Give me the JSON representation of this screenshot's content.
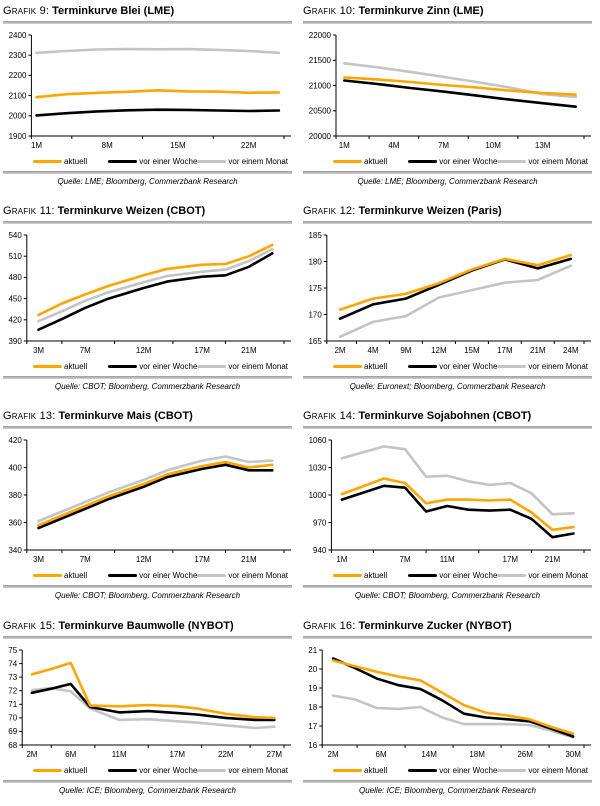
{
  "legend": {
    "items": [
      {
        "name": "aktuell",
        "label": "aktuell",
        "color": "#FFA500"
      },
      {
        "name": "woche",
        "label": "vor einer Woche",
        "color": "#000000"
      },
      {
        "name": "monat",
        "label": "vor einem Monat",
        "color": "#C4C4C4"
      }
    ]
  },
  "chart_data": [
    {
      "type": "line",
      "label": "Grafik 9:",
      "title": "Terminkurve Blei (LME)",
      "source": "Quelle: LME; Bloomberg, Commerzbank Research",
      "xlim": [
        0.5,
        25.5
      ],
      "ylim": [
        1900,
        2400
      ],
      "yticks": [
        1900,
        2000,
        2100,
        2200,
        2300,
        2400
      ],
      "xticks": [
        {
          "v": 1,
          "label": "1M"
        },
        {
          "v": 8,
          "label": "8M"
        },
        {
          "v": 15,
          "label": "15M"
        },
        {
          "v": 22,
          "label": "22M"
        }
      ],
      "x": [
        1,
        4,
        7,
        10,
        13,
        16,
        19,
        22,
        25
      ],
      "series": [
        {
          "name": "aktuell",
          "values": [
            2092,
            2107,
            2114,
            2119,
            2126,
            2121,
            2120,
            2114,
            2116
          ]
        },
        {
          "name": "woche",
          "values": [
            2002,
            2013,
            2022,
            2027,
            2030,
            2029,
            2026,
            2024,
            2026
          ]
        },
        {
          "name": "monat",
          "values": [
            2312,
            2321,
            2328,
            2330,
            2329,
            2330,
            2326,
            2321,
            2312
          ]
        }
      ]
    },
    {
      "type": "line",
      "label": "Grafik 10:",
      "title": "Terminkurve Zinn (LME)",
      "source": "Quelle: LME; Bloomberg, Commerzbank Research",
      "xlim": [
        0.5,
        15.5
      ],
      "ylim": [
        20000,
        22000
      ],
      "yticks": [
        20000,
        20500,
        21000,
        21500,
        22000
      ],
      "xticks": [
        {
          "v": 1,
          "label": "1M"
        },
        {
          "v": 4,
          "label": "4M"
        },
        {
          "v": 7,
          "label": "7M"
        },
        {
          "v": 10,
          "label": "10M"
        },
        {
          "v": 13,
          "label": "13M"
        }
      ],
      "x": [
        1,
        3,
        5,
        7,
        9,
        11,
        13,
        15
      ],
      "series": [
        {
          "name": "aktuell",
          "values": [
            21160,
            21120,
            21070,
            21010,
            20960,
            20900,
            20850,
            20820
          ]
        },
        {
          "name": "woche",
          "values": [
            21100,
            21030,
            20950,
            20880,
            20800,
            20720,
            20650,
            20580
          ]
        },
        {
          "name": "monat",
          "values": [
            21440,
            21360,
            21270,
            21170,
            21070,
            20960,
            20830,
            20770
          ]
        }
      ]
    },
    {
      "type": "line",
      "label": "Grafik 11:",
      "title": "Terminkurve Weizen (CBOT)",
      "source": "Quelle: CBOT; Bloomberg, Commerzbank Research",
      "xlim": [
        2,
        24
      ],
      "ylim": [
        390,
        540
      ],
      "yticks": [
        390,
        420,
        450,
        480,
        510,
        540
      ],
      "xticks": [
        {
          "v": 3,
          "label": "3M"
        },
        {
          "v": 7,
          "label": "7M"
        },
        {
          "v": 12,
          "label": "12M"
        },
        {
          "v": 17,
          "label": "17M"
        },
        {
          "v": 21,
          "label": "21M"
        }
      ],
      "x": [
        3,
        5,
        7,
        9,
        12,
        14,
        17,
        19,
        21,
        23
      ],
      "series": [
        {
          "name": "aktuell",
          "values": [
            427,
            443,
            456,
            468,
            483,
            492,
            498,
            499,
            510,
            526
          ]
        },
        {
          "name": "woche",
          "values": [
            406,
            421,
            437,
            450,
            465,
            474,
            481,
            483,
            495,
            514
          ]
        },
        {
          "name": "monat",
          "values": [
            418,
            432,
            447,
            459,
            473,
            482,
            488,
            491,
            503,
            520
          ]
        }
      ]
    },
    {
      "type": "line",
      "label": "Grafik 12:",
      "title": "Terminkurve Weizen (Paris)",
      "source": "Quelle: Euronext; Bloomberg, Commerzbank Research",
      "xlim": [
        -0.4,
        7.4
      ],
      "ylim": [
        165,
        185
      ],
      "yticks": [
        165,
        170,
        175,
        180,
        185
      ],
      "xticks": [
        {
          "v": 0,
          "label": "2M"
        },
        {
          "v": 1,
          "label": "4M"
        },
        {
          "v": 2,
          "label": "9M"
        },
        {
          "v": 3,
          "label": "12M"
        },
        {
          "v": 4,
          "label": "15M"
        },
        {
          "v": 5,
          "label": "17M"
        },
        {
          "v": 6,
          "label": "21M"
        },
        {
          "v": 7,
          "label": "24M"
        }
      ],
      "x": [
        0,
        1,
        2,
        3,
        4,
        5,
        6,
        7
      ],
      "series": [
        {
          "name": "aktuell",
          "values": [
            170.9,
            173.0,
            173.9,
            175.9,
            178.5,
            180.5,
            179.3,
            181.2
          ]
        },
        {
          "name": "woche",
          "values": [
            169.2,
            171.9,
            173.0,
            175.6,
            178.3,
            180.4,
            178.7,
            180.5
          ]
        },
        {
          "name": "monat",
          "values": [
            165.8,
            168.6,
            169.7,
            173.2,
            174.6,
            176.0,
            176.5,
            179.2
          ]
        }
      ]
    },
    {
      "type": "line",
      "label": "Grafik 13:",
      "title": "Terminkurve Mais (CBOT)",
      "source": "Quelle: CBOT; Bloomberg, Commerzbank Research",
      "xlim": [
        2,
        24
      ],
      "ylim": [
        340,
        420
      ],
      "yticks": [
        340,
        360,
        380,
        400,
        420
      ],
      "xticks": [
        {
          "v": 3,
          "label": "3M"
        },
        {
          "v": 7,
          "label": "7M"
        },
        {
          "v": 12,
          "label": "12M"
        },
        {
          "v": 17,
          "label": "17M"
        },
        {
          "v": 21,
          "label": "21M"
        }
      ],
      "x": [
        3,
        5,
        7,
        9,
        12,
        14,
        17,
        19,
        21,
        23
      ],
      "series": [
        {
          "name": "aktuell",
          "values": [
            358,
            365,
            372,
            379,
            388,
            395,
            401,
            404,
            400,
            402
          ]
        },
        {
          "name": "woche",
          "values": [
            356,
            363,
            370,
            377,
            386,
            393,
            399,
            402,
            398,
            398
          ]
        },
        {
          "name": "monat",
          "values": [
            361,
            368,
            375,
            382,
            391,
            398,
            405,
            408,
            404,
            405
          ]
        }
      ]
    },
    {
      "type": "line",
      "label": "Grafik 14:",
      "title": "Terminkurve Sojabohnen (CBOT)",
      "source": "Quelle: CBOT; Bloomberg, Commerzbank Research",
      "xlim": [
        0,
        24
      ],
      "ylim": [
        940,
        1060
      ],
      "yticks": [
        940,
        970,
        1000,
        1030,
        1060
      ],
      "xticks": [
        {
          "v": 1,
          "label": "1M"
        },
        {
          "v": 7,
          "label": "7M"
        },
        {
          "v": 11,
          "label": "11M"
        },
        {
          "v": 17,
          "label": "17M"
        },
        {
          "v": 21,
          "label": "21M"
        }
      ],
      "x": [
        1,
        5,
        7,
        9,
        11,
        13,
        15,
        17,
        19,
        21,
        23
      ],
      "series": [
        {
          "name": "aktuell",
          "values": [
            1001,
            1018,
            1013,
            991,
            995,
            995,
            994,
            995,
            981,
            962,
            965
          ]
        },
        {
          "name": "woche",
          "values": [
            995,
            1010,
            1008,
            982,
            988,
            984,
            983,
            984,
            974,
            954,
            958
          ]
        },
        {
          "name": "monat",
          "values": [
            1040,
            1053,
            1050,
            1020,
            1021,
            1015,
            1011,
            1013,
            1002,
            979,
            980
          ]
        }
      ]
    },
    {
      "type": "line",
      "label": "Grafik 15:",
      "title": "Terminkurve Baumwolle (NYBOT)",
      "source": "Quelle: ICE; Bloomberg, Commerzbank Research",
      "xlim": [
        1,
        28
      ],
      "ylim": [
        68,
        75
      ],
      "yticks": [
        68,
        69,
        70,
        71,
        72,
        73,
        74,
        75
      ],
      "xticks": [
        {
          "v": 2,
          "label": "2M"
        },
        {
          "v": 6,
          "label": "6M"
        },
        {
          "v": 11,
          "label": "11M"
        },
        {
          "v": 17,
          "label": "17M"
        },
        {
          "v": 22,
          "label": "22M"
        },
        {
          "v": 27,
          "label": "27M"
        }
      ],
      "x": [
        2,
        4,
        6,
        8,
        11,
        14,
        17,
        19,
        22,
        25,
        27
      ],
      "series": [
        {
          "name": "aktuell",
          "values": [
            73.2,
            73.6,
            74.05,
            70.9,
            70.85,
            70.95,
            70.85,
            70.7,
            70.3,
            70.05,
            70.0
          ]
        },
        {
          "name": "woche",
          "values": [
            71.85,
            72.15,
            72.5,
            70.8,
            70.4,
            70.5,
            70.35,
            70.25,
            70.0,
            69.85,
            69.85
          ]
        },
        {
          "name": "monat",
          "values": [
            72.05,
            72.2,
            71.95,
            70.7,
            69.85,
            69.9,
            69.75,
            69.65,
            69.45,
            69.25,
            69.35
          ]
        }
      ]
    },
    {
      "type": "line",
      "label": "Grafik 16:",
      "title": "Terminkurve Zucker (NYBOT)",
      "source": "Quelle: ICE; Bloomberg, Commerzbank Research",
      "xlim": [
        -0.5,
        11.5
      ],
      "ylim": [
        16,
        21
      ],
      "yticks": [
        16,
        17,
        18,
        19,
        20,
        21
      ],
      "xticks": [
        {
          "v": 0,
          "label": "2M"
        },
        {
          "v": 2.2,
          "label": "6M"
        },
        {
          "v": 4.4,
          "label": "14M"
        },
        {
          "v": 6.6,
          "label": "18M"
        },
        {
          "v": 8.8,
          "label": "26M"
        },
        {
          "v": 11,
          "label": "30M"
        }
      ],
      "x": [
        0,
        1,
        2,
        3,
        4,
        5,
        6,
        7,
        8,
        9,
        10,
        11
      ],
      "series": [
        {
          "name": "aktuell",
          "values": [
            20.45,
            20.15,
            19.85,
            19.6,
            19.4,
            18.75,
            18.1,
            17.7,
            17.55,
            17.35,
            16.95,
            16.6
          ]
        },
        {
          "name": "woche",
          "values": [
            20.55,
            20.05,
            19.5,
            19.15,
            18.95,
            18.35,
            17.65,
            17.45,
            17.35,
            17.25,
            16.85,
            16.45
          ]
        },
        {
          "name": "monat",
          "values": [
            18.6,
            18.4,
            17.95,
            17.9,
            18.0,
            17.45,
            17.1,
            17.1,
            17.1,
            17.05,
            16.75,
            16.4
          ]
        }
      ]
    }
  ]
}
